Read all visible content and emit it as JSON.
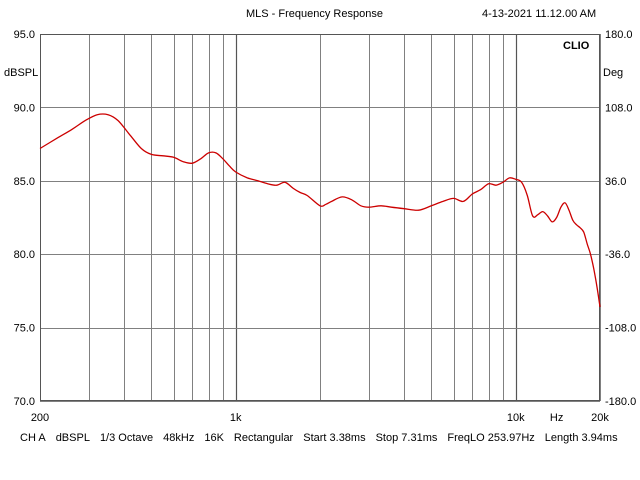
{
  "header": {
    "title": "MLS - Frequency Response",
    "timestamp": "4-13-2021 11.12.00 AM",
    "brand": "CLIO"
  },
  "axes": {
    "left_unit": "dBSPL",
    "right_unit": "Deg",
    "y_left_ticks": [
      "95.0",
      "90.0",
      "85.0",
      "80.0",
      "75.0",
      "70.0"
    ],
    "y_right_ticks": [
      "180.0",
      "108.0",
      "36.0",
      "-36.0",
      "-108.0",
      "-180.0"
    ],
    "x_tick_labels": [
      "200",
      "1k",
      "10k",
      "Hz",
      "20k"
    ]
  },
  "footer": {
    "channel": "CH A",
    "unit": "dBSPL",
    "smoothing": "1/3 Octave",
    "sample_rate": "48kHz",
    "fft_size": "16K",
    "window": "Rectangular",
    "start": "Start 3.38ms",
    "stop": "Stop 7.31ms",
    "freq_lo": "FreqLO 253.97Hz",
    "length": "Length 3.94ms"
  },
  "colors": {
    "trace": "#cc0000",
    "grid": "#808080",
    "background": "#ffffff"
  },
  "chart_data": {
    "type": "line",
    "title": "MLS - Frequency Response",
    "xlabel": "Hz",
    "ylabel": "dBSPL",
    "y2label": "Deg",
    "xscale": "log",
    "xlim": [
      200,
      20000
    ],
    "ylim": [
      70,
      95
    ],
    "y2lim": [
      -180,
      180
    ],
    "grid": true,
    "series": [
      {
        "x": [
          200,
          230,
          260,
          290,
          320,
          350,
          380,
          420,
          460,
          500,
          550,
          600,
          650,
          700,
          750,
          800,
          850,
          900,
          950,
          1000,
          1100,
          1200,
          1300,
          1400,
          1500,
          1600,
          1700,
          1800,
          2000,
          2100,
          2200,
          2400,
          2600,
          2800,
          3000,
          3300,
          3600,
          4000,
          4500,
          5000,
          5500,
          6000,
          6500,
          7000,
          7500,
          8000,
          8500,
          9000,
          9500,
          10000,
          10500,
          11000,
          11500,
          12000,
          12500,
          13000,
          13500,
          14000,
          14500,
          15000,
          15500,
          16000,
          16500,
          17000,
          17500,
          18000,
          18500,
          19000,
          19500,
          20000
        ],
        "values": [
          87.2,
          87.9,
          88.5,
          89.1,
          89.5,
          89.5,
          89.1,
          88.1,
          87.2,
          86.8,
          86.7,
          86.6,
          86.3,
          86.2,
          86.5,
          86.9,
          86.9,
          86.5,
          86.0,
          85.6,
          85.2,
          85.0,
          84.8,
          84.7,
          84.9,
          84.5,
          84.2,
          84.0,
          83.3,
          83.4,
          83.6,
          83.9,
          83.7,
          83.3,
          83.2,
          83.3,
          83.2,
          83.1,
          83.0,
          83.3,
          83.6,
          83.8,
          83.6,
          84.1,
          84.4,
          84.8,
          84.7,
          84.9,
          85.2,
          85.1,
          84.9,
          84.0,
          82.6,
          82.7,
          82.9,
          82.6,
          82.2,
          82.5,
          83.2,
          83.5,
          83.0,
          82.3,
          82.0,
          81.8,
          81.5,
          80.7,
          80.0,
          79.0,
          77.8,
          76.4
        ]
      }
    ]
  }
}
